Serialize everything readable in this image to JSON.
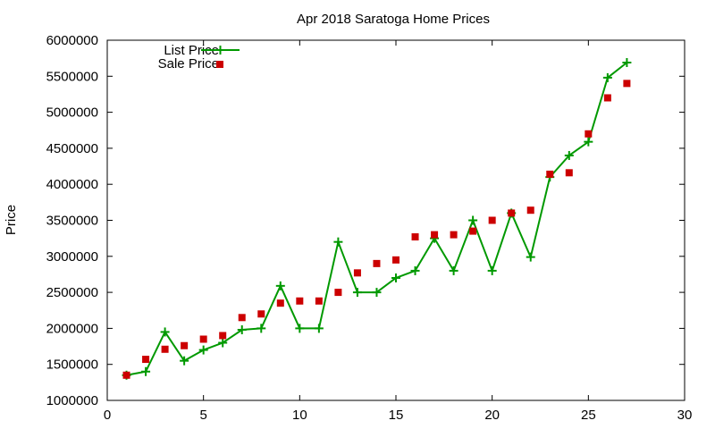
{
  "chart_data": {
    "type": "scatter",
    "title": "Apr 2018 Saratoga Home Prices",
    "xlabel": "",
    "ylabel": "Price",
    "xlim": [
      0,
      30
    ],
    "ylim": [
      1000000,
      6000000
    ],
    "x_ticks": [
      0,
      5,
      10,
      15,
      20,
      25,
      30
    ],
    "y_ticks": [
      1000000,
      1500000,
      2000000,
      2500000,
      3000000,
      3500000,
      4000000,
      4500000,
      5000000,
      5500000,
      6000000
    ],
    "grid": false,
    "legend_position": "top-left",
    "x": [
      1,
      2,
      3,
      4,
      5,
      6,
      7,
      8,
      9,
      10,
      11,
      12,
      13,
      14,
      15,
      16,
      17,
      18,
      19,
      20,
      21,
      22,
      23,
      24,
      25,
      26,
      27
    ],
    "series": [
      {
        "name": "List Price",
        "style": "line-plus",
        "color": "#009900",
        "values": [
          1350000,
          1400000,
          1950000,
          1550000,
          1700000,
          1800000,
          1980000,
          2000000,
          2590000,
          2000000,
          2000000,
          3200000,
          2500000,
          2500000,
          2700000,
          2800000,
          3250000,
          2800000,
          3500000,
          2800000,
          3600000,
          2990000,
          4100000,
          4400000,
          4590000,
          5480000,
          5690000
        ]
      },
      {
        "name": "Sale Price",
        "style": "square",
        "color": "#cc0000",
        "values": [
          1350000,
          1570000,
          1710000,
          1760000,
          1850000,
          1900000,
          2150000,
          2200000,
          2350000,
          2380000,
          2380000,
          2500000,
          2770000,
          2900000,
          2950000,
          3270000,
          3300000,
          3300000,
          3350000,
          3500000,
          3600000,
          3640000,
          4140000,
          4160000,
          4700000,
          5200000,
          5400000
        ]
      }
    ]
  }
}
